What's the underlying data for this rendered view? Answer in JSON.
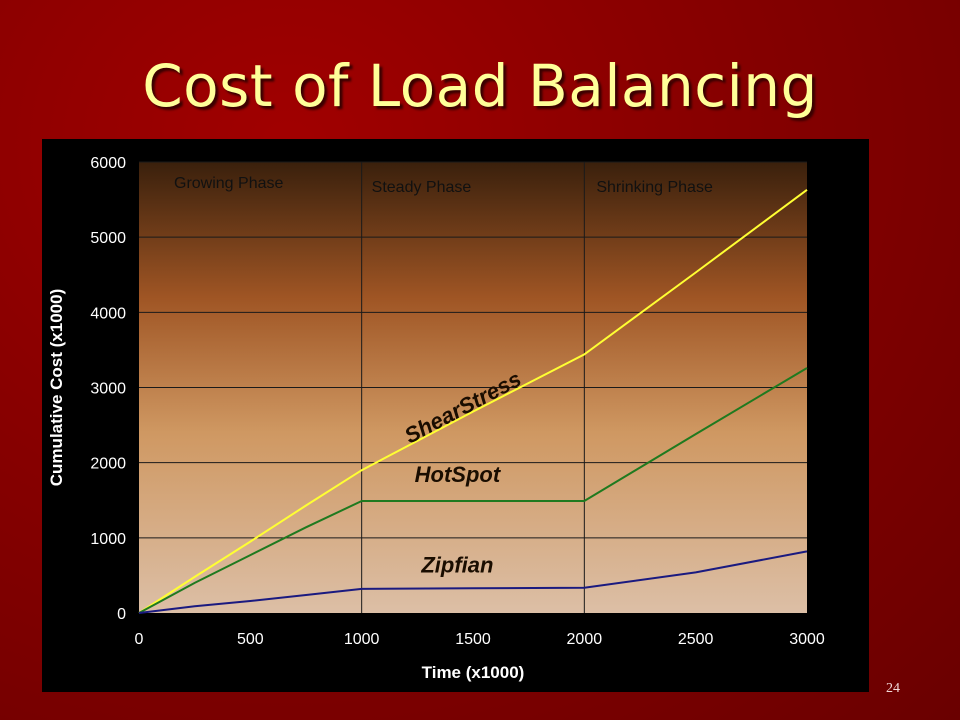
{
  "slide": {
    "title": "Cost of Load Balancing",
    "page_number": "24"
  },
  "chart_data": {
    "type": "line",
    "xlabel": "Time (x1000)",
    "ylabel": "Cumulative Cost (x1000)",
    "xlim": [
      0,
      3000
    ],
    "ylim": [
      0,
      6000
    ],
    "x_ticks": [
      0,
      500,
      1000,
      1500,
      2000,
      2500,
      3000
    ],
    "y_ticks": [
      0,
      1000,
      2000,
      3000,
      4000,
      5000,
      6000
    ],
    "grid": "horizontal and phase boundaries",
    "phases": [
      {
        "label": "Growing Phase",
        "start": 0,
        "end": 1000
      },
      {
        "label": "Steady Phase",
        "start": 1000,
        "end": 2000
      },
      {
        "label": "Shrinking Phase",
        "start": 2000,
        "end": 3000
      }
    ],
    "series": [
      {
        "name": "ShearStress",
        "color": "#ffff33",
        "x": [
          0,
          250,
          500,
          750,
          1000,
          1500,
          2000,
          2500,
          3000
        ],
        "y": [
          0,
          480,
          950,
          1430,
          1900,
          2680,
          3440,
          4530,
          5630
        ]
      },
      {
        "name": "HotSpot",
        "color": "#1f7a1f",
        "x": [
          0,
          250,
          500,
          750,
          1000,
          1500,
          2000,
          2500,
          3000
        ],
        "y": [
          0,
          400,
          770,
          1140,
          1490,
          1490,
          1490,
          2380,
          3260
        ]
      },
      {
        "name": "Zipfian",
        "color": "#1a1a80",
        "x": [
          0,
          250,
          500,
          750,
          1000,
          1500,
          2000,
          2500,
          3000
        ],
        "y": [
          0,
          90,
          160,
          240,
          320,
          330,
          335,
          540,
          820
        ]
      }
    ],
    "annotations": [
      {
        "text": "ShearStress",
        "x": 1470,
        "y": 2650,
        "rotate": -28
      },
      {
        "text": "HotSpot",
        "x": 1430,
        "y": 1740,
        "rotate": 0
      },
      {
        "text": "Zipfian",
        "x": 1430,
        "y": 540,
        "rotate": 0
      }
    ]
  }
}
